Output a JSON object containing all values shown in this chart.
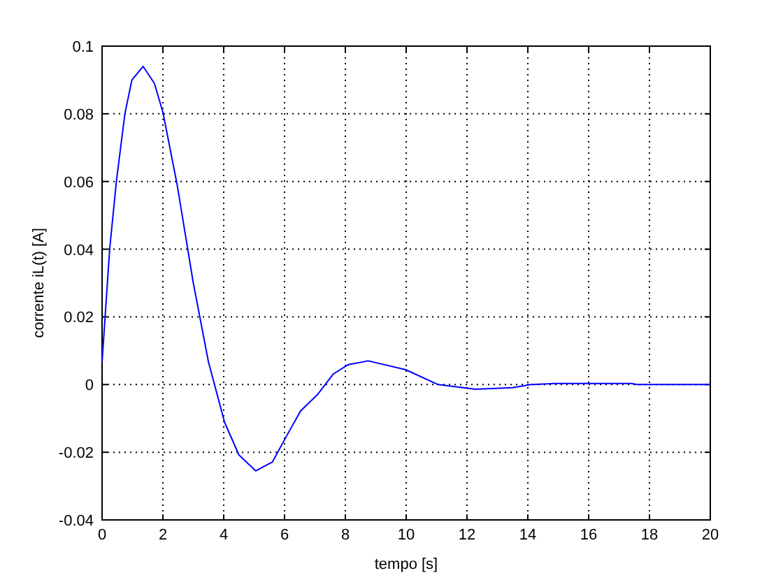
{
  "chart_data": {
    "type": "line",
    "xlabel": "tempo [s]",
    "ylabel": "corrente iL(t) [A]",
    "xlim": [
      0,
      20
    ],
    "xticks": [
      0,
      2,
      4,
      6,
      8,
      10,
      12,
      14,
      16,
      18,
      20
    ],
    "ylim": [
      -0.04,
      0.1
    ],
    "yticks": [
      -0.04,
      -0.02,
      0,
      0.02,
      0.04,
      0.06,
      0.08,
      0.1
    ],
    "grid": true,
    "marker": "none",
    "line_style": "solid",
    "series": [
      {
        "color": "#0000ff",
        "x": [
          0,
          0.1,
          0.25,
          0.47,
          0.75,
          0.98,
          1.35,
          1.72,
          2.0,
          2.47,
          3.0,
          3.5,
          4.03,
          4.5,
          5.05,
          5.6,
          6.06,
          6.53,
          7.08,
          7.6,
          8.1,
          8.75,
          9.98,
          11.05,
          12.28,
          13.5,
          14.1,
          14.9,
          17.4,
          17.6,
          20
        ],
        "values": [
          0.0066,
          0.02,
          0.04,
          0.06,
          0.08,
          0.09,
          0.094,
          0.089,
          0.0805,
          0.059,
          0.03,
          0.0066,
          -0.0112,
          -0.0208,
          -0.0255,
          -0.0229,
          -0.0153,
          -0.0078,
          -0.003,
          0.0031,
          0.0059,
          0.007,
          0.0044,
          0,
          -0.0014,
          -0.0009,
          0,
          0.0003,
          0.0003,
          0,
          0
        ]
      }
    ]
  }
}
